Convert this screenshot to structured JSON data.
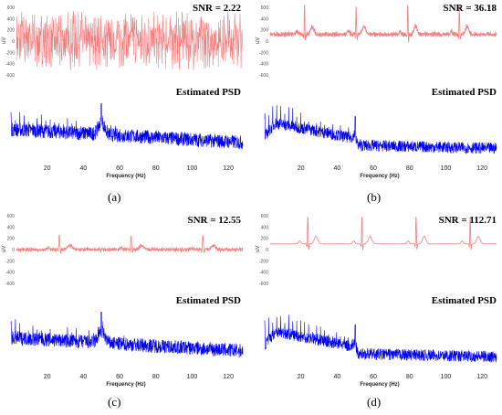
{
  "chart_data": [
    {
      "type": "line",
      "panel_label": "(a)",
      "signal": {
        "title": "SNR = 2.22",
        "ylabel": "uV",
        "yticks": [
          "600",
          "400",
          "200",
          "0",
          "-200",
          "-400",
          "-600"
        ],
        "ylim": [
          -600,
          600
        ],
        "color": "#f08080"
      },
      "psd": {
        "title": "Estimated PSD",
        "xlabel": "Frequency (Hz)",
        "xticks": [
          "20",
          "40",
          "60",
          "80",
          "100",
          "120"
        ],
        "xlim": [
          0,
          128
        ],
        "color": "#0000ee",
        "peak_hz": 50
      }
    },
    {
      "type": "line",
      "panel_label": "(b)",
      "signal": {
        "title": "SNR = 36.18",
        "ylabel": "uV",
        "yticks": [
          "600",
          "400",
          "200",
          "0",
          "-200",
          "-400",
          "-600"
        ],
        "ylim": [
          -600,
          600
        ],
        "color": "#f08080"
      },
      "psd": {
        "title": "Estimated PSD",
        "xlabel": "Frequency (Hz)",
        "xticks": [
          "20",
          "40",
          "60",
          "80",
          "100",
          "120"
        ],
        "xlim": [
          0,
          128
        ],
        "color": "#0000ee",
        "peak_hz": 50
      }
    },
    {
      "type": "line",
      "panel_label": "(c)",
      "signal": {
        "title": "SNR = 12.55",
        "ylabel": "uV",
        "yticks": [
          "600",
          "400",
          "200",
          "0",
          "-200",
          "-400",
          "-600"
        ],
        "ylim": [
          -600,
          600
        ],
        "color": "#f08080"
      },
      "psd": {
        "title": "Estimated PSD",
        "xlabel": "Frequency (Hz)",
        "xticks": [
          "20",
          "40",
          "60",
          "80",
          "100",
          "120"
        ],
        "xlim": [
          0,
          128
        ],
        "color": "#0000ee",
        "peak_hz": 50
      }
    },
    {
      "type": "line",
      "panel_label": "(d)",
      "signal": {
        "title": "SNR = 112.71",
        "ylabel": "uV",
        "yticks": [
          "600",
          "400",
          "200",
          "0",
          "-200",
          "-400",
          "-600"
        ],
        "ylim": [
          -600,
          600
        ],
        "color": "#f08080"
      },
      "psd": {
        "title": "Estimated PSD",
        "xlabel": "Frequency (Hz)",
        "xticks": [
          "20",
          "40",
          "60",
          "80",
          "100",
          "120"
        ],
        "xlim": [
          0,
          128
        ],
        "color": "#0000ee",
        "peak_hz": 50
      }
    }
  ]
}
